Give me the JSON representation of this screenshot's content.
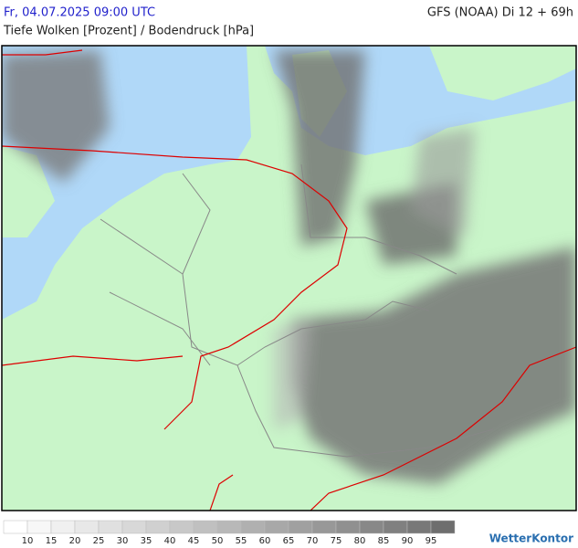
{
  "header": {
    "title": "Fr, 04.07.2025 09:00 UTC",
    "model": "GFS (NOAA) Di 12 + 69h",
    "subtitle": "Tiefe Wolken [Prozent] / Bodendruck [hPa]"
  },
  "legend": {
    "labels": [
      10,
      15,
      20,
      25,
      30,
      35,
      40,
      45,
      50,
      55,
      60,
      65,
      70,
      75,
      80,
      85,
      90,
      95
    ],
    "colors": [
      "#ffffff",
      "#f7f7f7",
      "#f0f0f0",
      "#e8e8e8",
      "#e0e0e0",
      "#d8d8d8",
      "#d0d0d0",
      "#c8c8c8",
      "#c0c0c0",
      "#b8b8b8",
      "#b0b0b0",
      "#a8a8a8",
      "#a0a0a0",
      "#989898",
      "#909090",
      "#888888",
      "#808080",
      "#787878",
      "#6e6e6e"
    ]
  },
  "logo": "WetterKontor"
}
